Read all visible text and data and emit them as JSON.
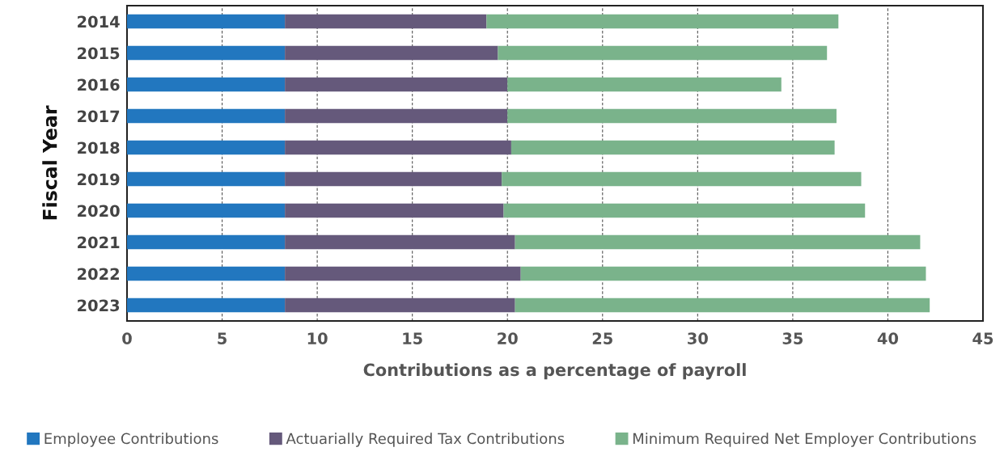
{
  "chart_data": {
    "type": "bar",
    "orientation": "horizontal",
    "stacked": true,
    "xlabel": "Contributions as a percentage of payroll",
    "ylabel": "Fiscal Year",
    "categories": [
      "2014",
      "2015",
      "2016",
      "2017",
      "2018",
      "2019",
      "2020",
      "2021",
      "2022",
      "2023"
    ],
    "series": [
      {
        "name": "Employee Contributions",
        "color": "#2277bf",
        "values": [
          8.3,
          8.3,
          8.3,
          8.3,
          8.3,
          8.3,
          8.3,
          8.3,
          8.3,
          8.3
        ]
      },
      {
        "name": "Actuarially Required Tax Contributions",
        "color": "#65597b",
        "values": [
          10.6,
          11.2,
          11.7,
          11.7,
          11.9,
          11.4,
          11.5,
          12.1,
          12.4,
          12.1
        ]
      },
      {
        "name": "Minimum Required Net Employer Contributions",
        "color": "#7ab38b",
        "values": [
          18.5,
          17.3,
          14.4,
          17.3,
          17.0,
          18.9,
          19.0,
          21.3,
          21.3,
          21.8
        ]
      }
    ],
    "xlim": [
      0,
      45
    ],
    "xticks": [
      0,
      5,
      10,
      15,
      20,
      25,
      30,
      35,
      40,
      45
    ],
    "grid": "x",
    "legend": "bottom"
  }
}
